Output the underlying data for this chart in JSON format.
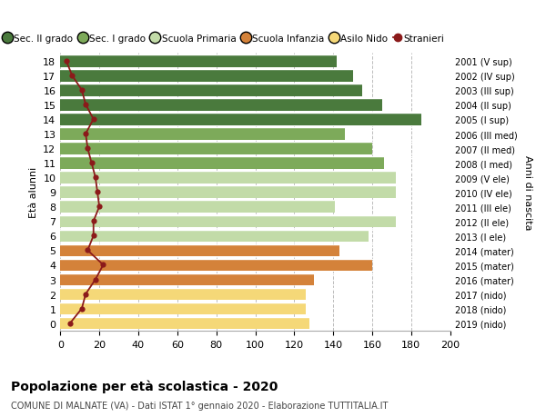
{
  "ages": [
    18,
    17,
    16,
    15,
    14,
    13,
    12,
    11,
    10,
    9,
    8,
    7,
    6,
    5,
    4,
    3,
    2,
    1,
    0
  ],
  "years": [
    "2001 (V sup)",
    "2002 (IV sup)",
    "2003 (III sup)",
    "2004 (II sup)",
    "2005 (I sup)",
    "2006 (III med)",
    "2007 (II med)",
    "2008 (I med)",
    "2009 (V ele)",
    "2010 (IV ele)",
    "2011 (III ele)",
    "2012 (II ele)",
    "2013 (I ele)",
    "2014 (mater)",
    "2015 (mater)",
    "2016 (mater)",
    "2017 (nido)",
    "2018 (nido)",
    "2019 (nido)"
  ],
  "bar_values": [
    142,
    150,
    155,
    165,
    185,
    146,
    160,
    166,
    172,
    172,
    141,
    172,
    158,
    143,
    160,
    130,
    126,
    126,
    128
  ],
  "stranieri": [
    3,
    6,
    11,
    13,
    17,
    13,
    14,
    16,
    18,
    19,
    20,
    17,
    17,
    14,
    22,
    18,
    13,
    11,
    5
  ],
  "bar_colors": [
    "#4a7a3d",
    "#4a7a3d",
    "#4a7a3d",
    "#4a7a3d",
    "#4a7a3d",
    "#7daa5a",
    "#7daa5a",
    "#7daa5a",
    "#c2dba8",
    "#c2dba8",
    "#c2dba8",
    "#c2dba8",
    "#c2dba8",
    "#d4823a",
    "#d4823a",
    "#d4823a",
    "#f5d878",
    "#f5d878",
    "#f5d878"
  ],
  "stranieri_color": "#8b1a1a",
  "legend_labels": [
    "Sec. II grado",
    "Sec. I grado",
    "Scuola Primaria",
    "Scuola Infanzia",
    "Asilo Nido",
    "Stranieri"
  ],
  "legend_colors": [
    "#4a7a3d",
    "#7daa5a",
    "#c2dba8",
    "#d4823a",
    "#f5d878",
    "#8b1a1a"
  ],
  "title": "Popolazione per età scolastica - 2020",
  "subtitle": "COMUNE DI MALNATE (VA) - Dati ISTAT 1° gennaio 2020 - Elaborazione TUTTITALIA.IT",
  "ylabel": "Età alunni",
  "right_ylabel": "Anni di nascita",
  "xlim": [
    0,
    200
  ],
  "background_color": "#ffffff",
  "grid_color": "#bbbbbb",
  "bar_height": 0.85
}
